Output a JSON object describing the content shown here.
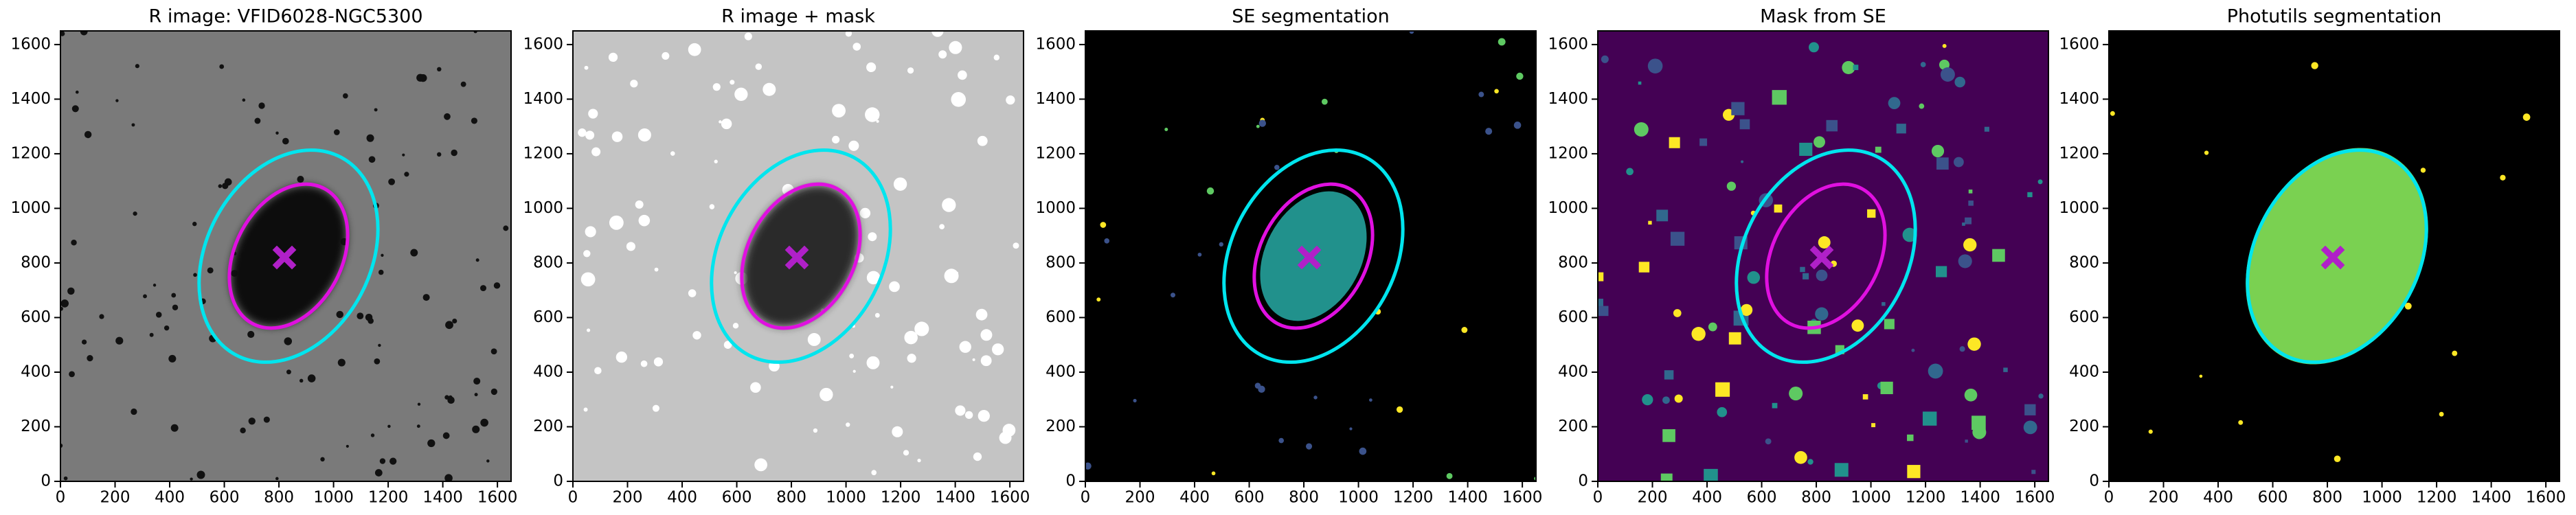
{
  "chart_data": [
    {
      "type": "image",
      "title": "R image: VFID6028-NGC5300",
      "background": "#7a7a7a",
      "xlim": [
        0,
        1650
      ],
      "ylim": [
        0,
        1650
      ],
      "xticks": [
        0,
        200,
        400,
        600,
        800,
        1000,
        1200,
        1400,
        1600
      ],
      "yticks": [
        0,
        200,
        400,
        600,
        800,
        1000,
        1200,
        1400,
        1600
      ],
      "ellipses": [
        {
          "color": "#00e5ee",
          "cx": 835,
          "cy": 825,
          "rx": 410,
          "ry": 300,
          "angle": 62
        },
        {
          "color": "#e010e0",
          "cx": 835,
          "cy": 825,
          "rx": 280,
          "ry": 195,
          "angle": 62
        }
      ],
      "marker": {
        "x": 820,
        "y": 820,
        "color": "#b020c8"
      }
    },
    {
      "type": "image",
      "title": "R image + mask",
      "background": "#c4c4c4",
      "xlim": [
        0,
        1650
      ],
      "ylim": [
        0,
        1650
      ],
      "xticks": [
        0,
        200,
        400,
        600,
        800,
        1000,
        1200,
        1400,
        1600
      ],
      "yticks": [
        0,
        200,
        400,
        600,
        800,
        1000,
        1200,
        1400,
        1600
      ],
      "ellipses": [
        {
          "color": "#00e5ee",
          "cx": 835,
          "cy": 825,
          "rx": 410,
          "ry": 300,
          "angle": 62
        },
        {
          "color": "#e010e0",
          "cx": 835,
          "cy": 825,
          "rx": 280,
          "ry": 195,
          "angle": 62
        }
      ],
      "marker": {
        "x": 820,
        "y": 820,
        "color": "#b020c8"
      }
    },
    {
      "type": "image",
      "title": "SE segmentation",
      "background": "#000000",
      "xlim": [
        0,
        1650
      ],
      "ylim": [
        0,
        1650
      ],
      "xticks": [
        0,
        200,
        400,
        600,
        800,
        1000,
        1200,
        1400,
        1600
      ],
      "yticks": [
        0,
        200,
        400,
        600,
        800,
        1000,
        1200,
        1400,
        1600
      ],
      "ellipses": [
        {
          "color": "#00e5ee",
          "cx": 835,
          "cy": 825,
          "rx": 410,
          "ry": 300,
          "angle": 62
        },
        {
          "color": "#e010e0",
          "cx": 835,
          "cy": 825,
          "rx": 280,
          "ry": 195,
          "angle": 62
        }
      ],
      "marker": {
        "x": 820,
        "y": 820,
        "color": "#b020c8"
      }
    },
    {
      "type": "image",
      "title": "Mask from SE",
      "background": "#440154",
      "xlim": [
        0,
        1650
      ],
      "ylim": [
        0,
        1650
      ],
      "xticks": [
        0,
        200,
        400,
        600,
        800,
        1000,
        1200,
        1400,
        1600
      ],
      "yticks": [
        0,
        200,
        400,
        600,
        800,
        1000,
        1200,
        1400,
        1600
      ],
      "ellipses": [
        {
          "color": "#00e5ee",
          "cx": 835,
          "cy": 825,
          "rx": 410,
          "ry": 300,
          "angle": 62
        },
        {
          "color": "#e010e0",
          "cx": 835,
          "cy": 825,
          "rx": 280,
          "ry": 195,
          "angle": 62
        }
      ],
      "marker": {
        "x": 820,
        "y": 820,
        "color": "#b020c8"
      }
    },
    {
      "type": "image",
      "title": "Photutils segmentation",
      "background": "#000000",
      "xlim": [
        0,
        1650
      ],
      "ylim": [
        0,
        1650
      ],
      "xticks": [
        0,
        200,
        400,
        600,
        800,
        1000,
        1200,
        1400,
        1600
      ],
      "yticks": [
        0,
        200,
        400,
        600,
        800,
        1000,
        1200,
        1400,
        1600
      ],
      "ellipses": [
        {
          "color": "#00e5ee",
          "cx": 835,
          "cy": 825,
          "rx": 410,
          "ry": 300,
          "angle": 62
        }
      ],
      "marker": {
        "x": 820,
        "y": 820,
        "color": "#b020c8"
      }
    }
  ]
}
